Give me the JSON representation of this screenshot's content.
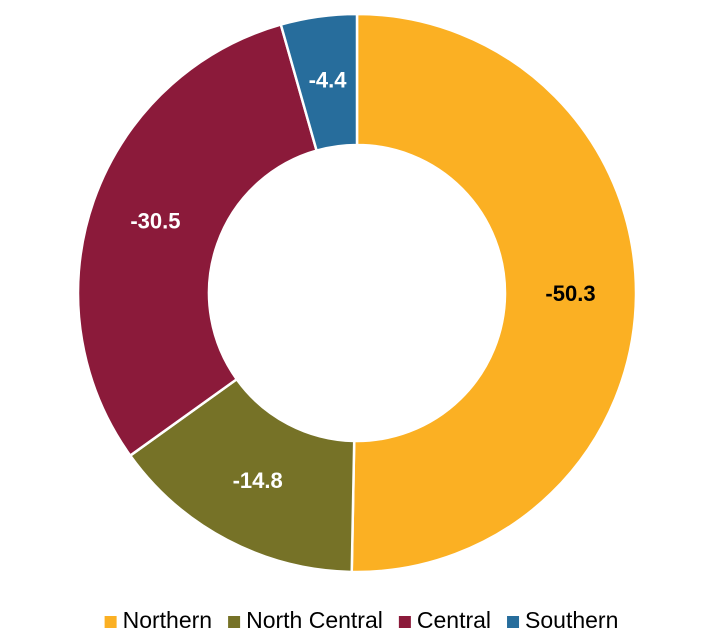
{
  "chart_data": {
    "type": "donut",
    "categories": [
      "Northern",
      "North Central",
      "Central",
      "Southern"
    ],
    "values": [
      -50.3,
      -14.8,
      -30.5,
      -4.4
    ],
    "colors": [
      "#FBB023",
      "#767227",
      "#8B1A3A",
      "#276D9C"
    ],
    "label_colors": [
      "#000000",
      "#ffffff",
      "#ffffff",
      "#ffffff"
    ],
    "legend": "bottom"
  }
}
